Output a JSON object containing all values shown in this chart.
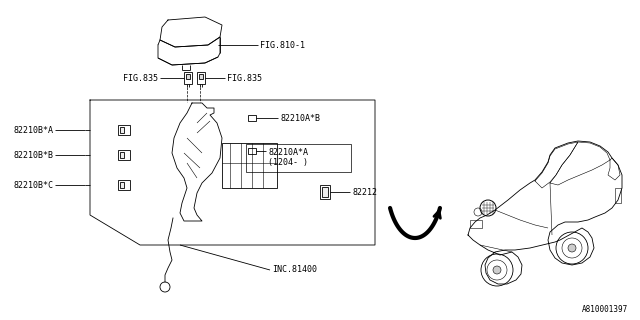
{
  "background_color": "#ffffff",
  "part_number_label": "A810001397",
  "fig810_label": "FIG.810-1",
  "fig835_left": "FIG.835",
  "fig835_right": "FIG.835",
  "label_82210BA": "82210B*A",
  "label_82210BB": "82210B*B",
  "label_82210BC": "82210B*C",
  "label_82210AB": "82210A*B",
  "label_82210AA": "82210A*A",
  "label_82210AA_sub": "(1204- )",
  "label_82212": "82212",
  "label_inc81400": "INC.81400",
  "line_color": "#000000",
  "text_color": "#000000",
  "font_size": 6.0,
  "lw": 0.6
}
